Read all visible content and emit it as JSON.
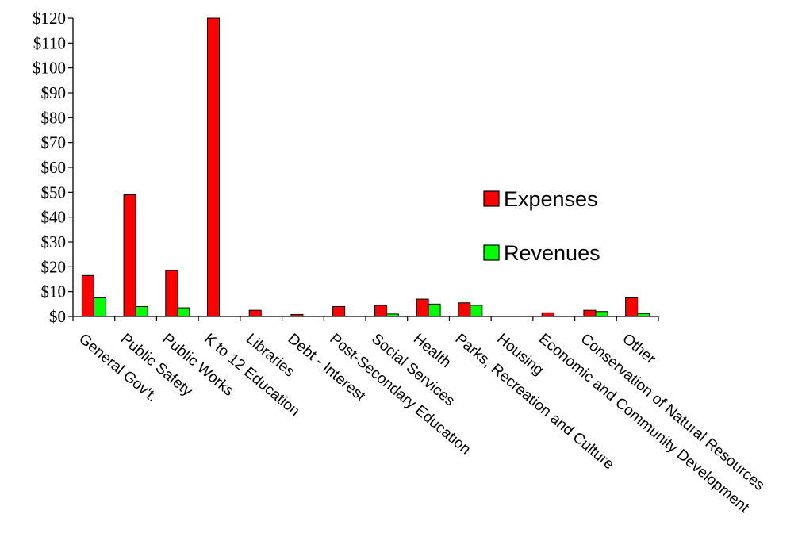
{
  "chart_data": {
    "type": "bar",
    "title": "",
    "xlabel": "",
    "ylabel": "",
    "ylim": [
      0,
      120
    ],
    "y_ticks": [
      0,
      10,
      20,
      30,
      40,
      50,
      60,
      70,
      80,
      90,
      100,
      110,
      120
    ],
    "y_tick_labels": [
      "$0",
      "$10",
      "$20",
      "$30",
      "$40",
      "$50",
      "$60",
      "$70",
      "$80",
      "$90",
      "$100",
      "$110",
      "$120"
    ],
    "grid": false,
    "legend_position": "right",
    "categories": [
      "General Gov't.",
      "Public Safety",
      "Public Works",
      "K to 12 Education",
      "Libraries",
      "Debt - Interest",
      "Post-Secondary Education",
      "Social Services",
      "Health",
      "Parks, Recreation and Culture",
      "Housing",
      "Economic and Community Development",
      "Conservation of Natural Resources",
      "Other"
    ],
    "series": [
      {
        "name": "Expenses",
        "color": "#ff0000",
        "values": [
          16.5,
          49,
          18.5,
          120,
          2.5,
          0.8,
          4,
          4.5,
          7,
          5.5,
          0,
          1.5,
          2.5,
          7.5
        ]
      },
      {
        "name": "Revenues",
        "color": "#00ff00",
        "values": [
          7.5,
          4,
          3.5,
          0,
          0,
          0,
          0,
          1,
          5,
          4.5,
          0,
          0,
          2,
          1.2
        ]
      }
    ]
  }
}
